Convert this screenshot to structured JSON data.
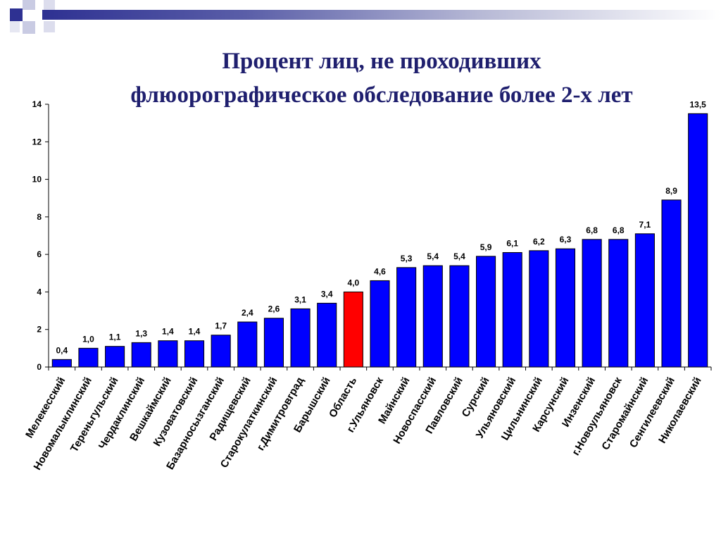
{
  "title_line1": "Процент лиц, не проходивших",
  "title_line2": "флюорографическое обследование более 2-х лет",
  "colors": {
    "bar": "#0000ff",
    "highlight": "#ff0000",
    "title": "#1f1f6e",
    "header_accent": "#2e3192"
  },
  "chart_data": {
    "type": "bar",
    "title": "Процент лиц, не проходивших флюорографическое обследование более 2-х лет",
    "xlabel": "",
    "ylabel": "",
    "ylim": [
      0,
      14
    ],
    "yticks": [
      0,
      2,
      4,
      6,
      8,
      10,
      12,
      14
    ],
    "grid": false,
    "highlight_category": "Область",
    "categories": [
      "Мелекесский",
      "Новомалыклинский",
      "Тереньгульский",
      "Чердаклинский",
      "Вешкаймский",
      "Кузоватовский",
      "Базарносызганский",
      "Радищевский",
      "Старокулаткинский",
      "г.Димитровград",
      "Барышский",
      "Область",
      "г.Ульяновск",
      "Майнский",
      "Новоспасский",
      "Павловский",
      "Сурский",
      "Ульяновский",
      "Цильнинский",
      "Карсунский",
      "Инзенский",
      "г.Новоульяновск",
      "Старомайнский",
      "Сенгилеевский",
      "Николаевский"
    ],
    "values": [
      0.4,
      1.0,
      1.1,
      1.3,
      1.4,
      1.4,
      1.7,
      2.4,
      2.6,
      3.1,
      3.4,
      4.0,
      4.6,
      5.3,
      5.4,
      5.4,
      5.9,
      6.1,
      6.2,
      6.3,
      6.8,
      6.8,
      7.1,
      8.9,
      13.5
    ],
    "value_labels": [
      "0,4",
      "1,0",
      "1,1",
      "1,3",
      "1,4",
      "1,4",
      "1,7",
      "2,4",
      "2,6",
      "3,1",
      "3,4",
      "4,0",
      "4,6",
      "5,3",
      "5,4",
      "5,4",
      "5,9",
      "6,1",
      "6,2",
      "6,3",
      "6,8",
      "6,8",
      "7,1",
      "8,9",
      "13,5"
    ]
  }
}
